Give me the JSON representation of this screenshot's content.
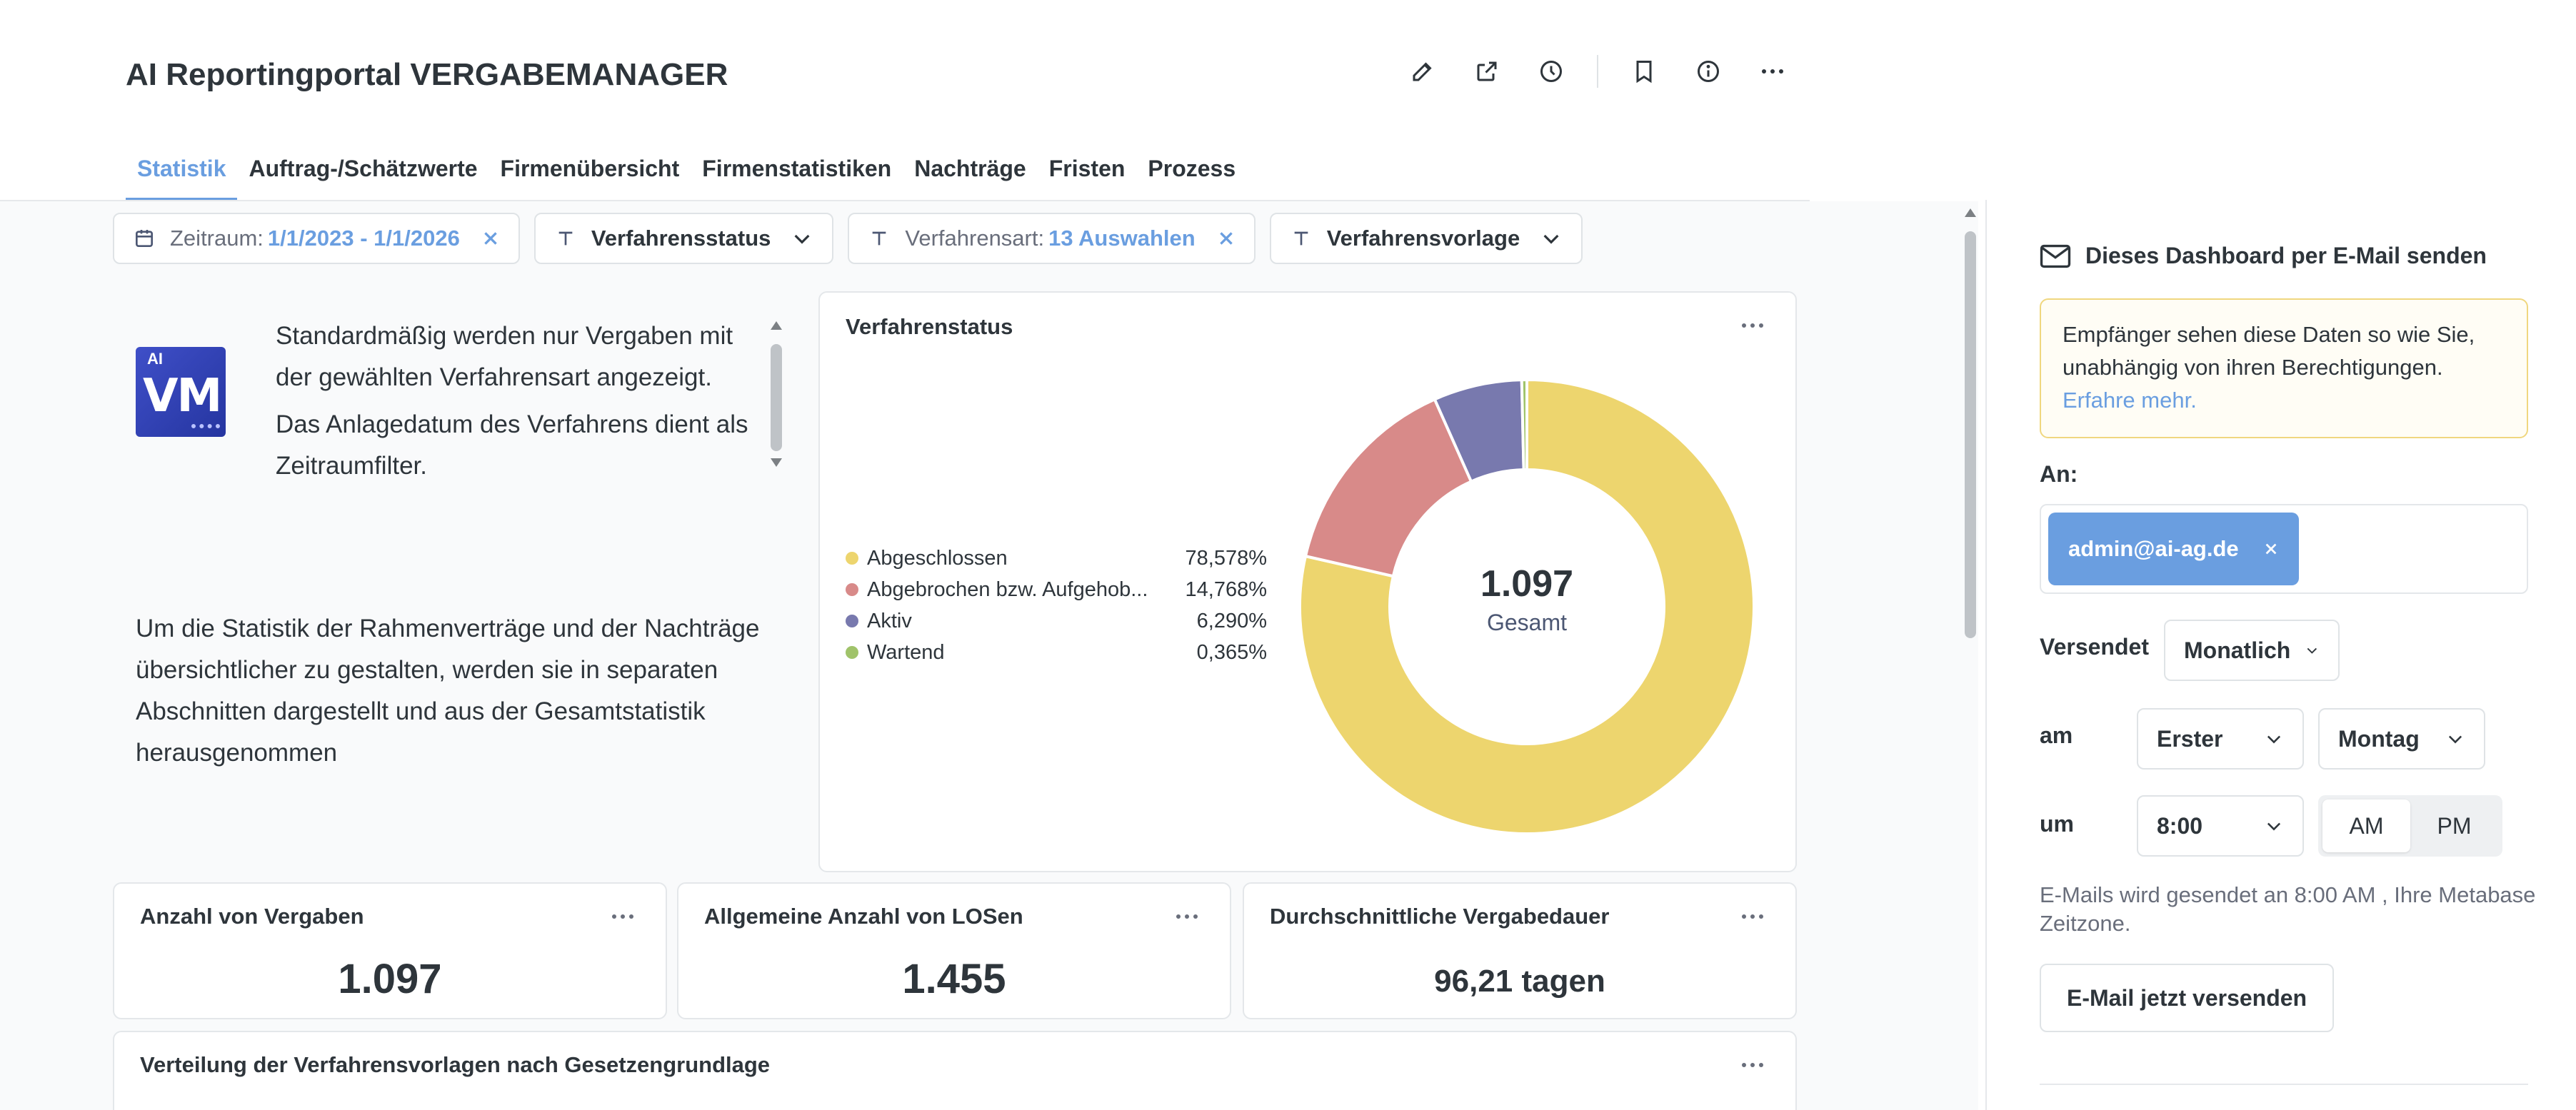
{
  "app": {
    "title": "AI Reportingportal VERGABEMANAGER"
  },
  "header_icons": [
    "pencil-icon",
    "share-icon",
    "clock-icon",
    "bookmark-icon",
    "info-icon",
    "ellipsis-icon"
  ],
  "tabs": [
    {
      "label": "Statistik",
      "active": true
    },
    {
      "label": "Auftrag-/Schätzwerte"
    },
    {
      "label": "Firmenübersicht"
    },
    {
      "label": "Firmenstatistiken"
    },
    {
      "label": "Nachträge"
    },
    {
      "label": "Fristen"
    },
    {
      "label": "Prozess"
    }
  ],
  "filters": {
    "zeitraum": {
      "label": "Zeitraum:",
      "value": "1/1/2023 - 1/1/2026"
    },
    "verfahrensstatus": {
      "label": "Verfahrensstatus"
    },
    "verfahrensart": {
      "label": "Verfahrensart:",
      "value": "13 Auswahlen"
    },
    "verfahrensvorlage": {
      "label": "Verfahrensvorlage"
    }
  },
  "logo": {
    "small": "AI",
    "big": "VM"
  },
  "text_card": {
    "para1": "Standardmäßig werden nur Vergaben mit der gewählten Verfahrensart angezeigt.",
    "para2": "Das Anlagedatum des Verfahrens dient als Zeitraumfilter.",
    "para3": "Um die Statistik der Rahmenverträge und der Nachträge übersichtlicher zu gestalten, werden sie in separaten Abschnitten dargestellt und aus der Gesamtstatistik herausgenommen"
  },
  "chart_data": {
    "type": "pie",
    "title": "Verfahrenstatus",
    "categories": [
      "Abgeschlossen",
      "Abgebrochen bzw. Aufgehob...",
      "Aktiv",
      "Wartend"
    ],
    "values": [
      78.578,
      14.768,
      6.29,
      0.365
    ],
    "value_labels": [
      "78,578%",
      "14,768%",
      "6,290%",
      "0,365%"
    ],
    "colors": [
      "#EDD56E",
      "#D88A89",
      "#7879AE",
      "#A0C36A"
    ],
    "total": "1.097",
    "total_label": "Gesamt",
    "legend_position": "left"
  },
  "kpis": [
    {
      "title": "Anzahl von Vergaben",
      "value": "1.097"
    },
    {
      "title": "Allgemeine Anzahl von LOSen",
      "value": "1.455"
    },
    {
      "title": "Durchschnittliche Vergabedauer",
      "value": "96,21 tagen"
    }
  ],
  "bottom_card": {
    "title": "Verteilung der Verfahrensvorlagen nach Gesetzengrundlage"
  },
  "sidebar": {
    "heading": "Dieses Dashboard per E-Mail senden",
    "notice_text": "Empfänger sehen diese Daten so wie Sie, unabhängig von ihren Berechtigungen.",
    "notice_link": "Erfahre mehr.",
    "to_label": "An:",
    "recipient": "admin@ai-ag.de",
    "sent_label": "Versendet",
    "frequency": "Monatlich",
    "on_label": "am",
    "day_ordinal": "Erster",
    "weekday": "Montag",
    "at_label": "um",
    "time": "8:00",
    "am": "AM",
    "pm": "PM",
    "ampm_selected": "AM",
    "info": "E-Mails wird gesendet an 8:00 AM , Ihre Metabase Zeitzone.",
    "send_button": "E-Mail jetzt versenden"
  }
}
